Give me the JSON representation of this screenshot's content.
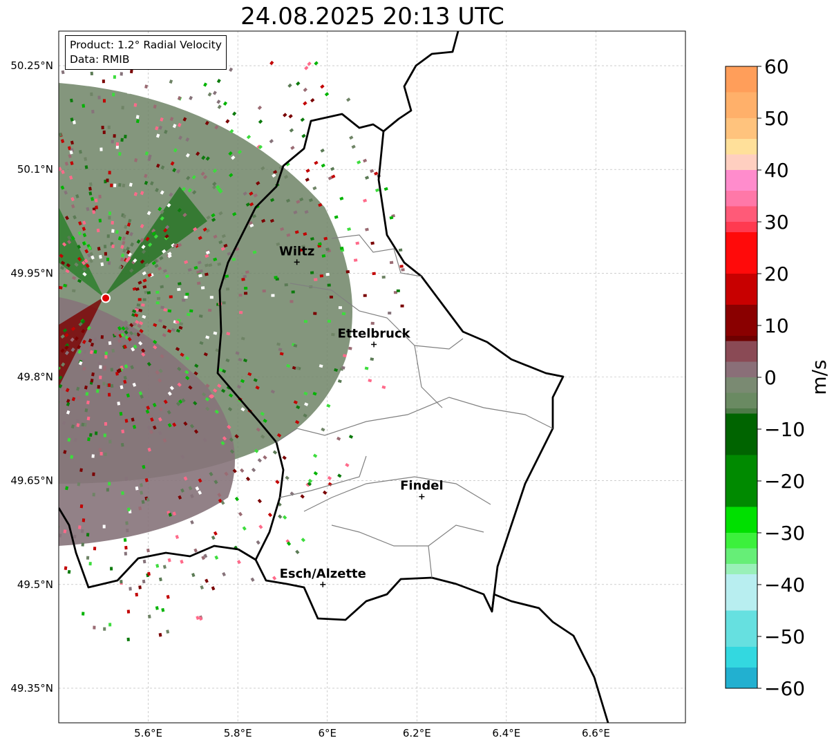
{
  "title": "24.08.2025 20:13 UTC",
  "info": {
    "product": "Product: 1.2° Radial Velocity",
    "data": "Data: RMIB"
  },
  "map": {
    "lon_range": [
      5.4,
      6.8
    ],
    "lat_range": [
      49.3,
      50.3
    ],
    "lon_ticks": [
      "5.6°E",
      "5.8°E",
      "6°E",
      "6.2°E",
      "6.4°E",
      "6.6°E"
    ],
    "lon_tick_values": [
      5.6,
      5.8,
      6.0,
      6.2,
      6.4,
      6.6
    ],
    "lat_ticks": [
      "50.25°N",
      "50.1°N",
      "49.95°N",
      "49.8°N",
      "49.65°N",
      "49.5°N",
      "49.35°N"
    ],
    "lat_tick_values": [
      50.25,
      50.1,
      49.95,
      49.8,
      49.65,
      49.5,
      49.35
    ],
    "grid": true,
    "radar": {
      "lon": 5.505,
      "lat": 49.914
    },
    "cities": [
      {
        "name": "Wiltz",
        "lon": 5.932,
        "lat": 49.966
      },
      {
        "name": "Ettelbruck",
        "lon": 6.104,
        "lat": 49.847
      },
      {
        "name": "Findel",
        "lon": 6.211,
        "lat": 49.627
      },
      {
        "name": "Esch/Alzette",
        "lon": 5.99,
        "lat": 49.5
      }
    ]
  },
  "colorbar": {
    "label": "m/s",
    "min": -60,
    "max": 60,
    "ticks": [
      "60",
      "50",
      "40",
      "30",
      "20",
      "10",
      "0",
      "−10",
      "−20",
      "−30",
      "−40",
      "−50",
      "−60"
    ],
    "tick_values": [
      60,
      50,
      40,
      30,
      20,
      10,
      0,
      -10,
      -20,
      -30,
      -40,
      -50,
      -60
    ]
  }
}
